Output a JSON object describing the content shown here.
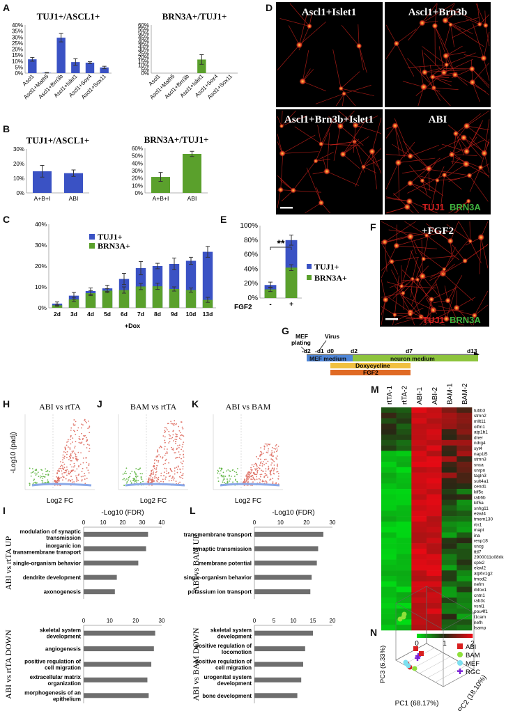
{
  "panel_letters": [
    "A",
    "B",
    "C",
    "D",
    "E",
    "F",
    "G",
    "H",
    "I",
    "J",
    "K",
    "L",
    "M",
    "N"
  ],
  "chart_data": [
    {
      "id": "A1",
      "type": "bar",
      "title": "TUJ1+/ASCL1+",
      "color": "#3a52c4",
      "categories": [
        "Ascl1",
        "Ascl1+Math5",
        "Ascl1+Brn3b",
        "Ascl1+Islet1",
        "Ascl1+Sox4",
        "Ascl1+Sox11"
      ],
      "values": [
        11.5,
        0.3,
        29.5,
        9.2,
        8.7,
        4.7
      ],
      "errors": [
        1.6,
        0.2,
        3.5,
        2.8,
        0.8,
        1.0
      ],
      "ylim": [
        0,
        40
      ],
      "yticks": [
        "0%",
        "5%",
        "10%",
        "15%",
        "20%",
        "25%",
        "30%",
        "35%",
        "40%"
      ]
    },
    {
      "id": "A2",
      "type": "bar",
      "title": "BRN3A+/TUJ1+",
      "color": "#5aa02c",
      "categories": [
        "Ascl1",
        "Ascl1+Math5",
        "Ascl1+Brn3b",
        "Ascl1+Islet1",
        "Ascl1+Sox4",
        "Ascl1+Sox11"
      ],
      "values": [
        0,
        0,
        0,
        17,
        0,
        0
      ],
      "errors": [
        0,
        0,
        0,
        6,
        0,
        0
      ],
      "ylim": [
        0,
        60
      ],
      "yticks": [
        "0%",
        "5%",
        "10%",
        "15%",
        "20%",
        "25%",
        "30%",
        "35%",
        "40%",
        "45%",
        "50%",
        "55%",
        "60%"
      ]
    },
    {
      "id": "B1",
      "type": "bar",
      "title": "TUJ1+/ASCL1+",
      "color": "#3a52c4",
      "categories": [
        "A+B+I",
        "ABI"
      ],
      "values": [
        14.8,
        13.5
      ],
      "errors": [
        4,
        2.2
      ],
      "ylim": [
        0,
        30
      ],
      "yticks": [
        "0%",
        "10%",
        "20%",
        "30%"
      ]
    },
    {
      "id": "B2",
      "type": "bar",
      "title": "BRN3A+/TUJ1+",
      "color": "#5aa02c",
      "categories": [
        "A+B+I",
        "ABI"
      ],
      "values": [
        21.5,
        52.5
      ],
      "errors": [
        6,
        3.5
      ],
      "ylim": [
        0,
        60
      ],
      "yticks": [
        "0%",
        "10%",
        "20%",
        "30%",
        "40%",
        "50%",
        "60%"
      ]
    },
    {
      "id": "C",
      "type": "bar",
      "xlabel": "+Dox",
      "categories": [
        "2d",
        "3d",
        "4d",
        "5d",
        "6d",
        "7d",
        "8d",
        "9d",
        "10d",
        "13d"
      ],
      "series": [
        {
          "name": "TUJ1+",
          "color": "#3a52c4",
          "values": [
            2,
            5.8,
            8,
            9.3,
            13.8,
            19,
            20,
            21,
            22.5,
            26.8
          ],
          "errors": [
            0.8,
            1.6,
            1.5,
            1.5,
            2.7,
            3.2,
            1.3,
            2.8,
            1.7,
            2.6
          ]
        },
        {
          "name": "BRN3A+",
          "color": "#5aa02c",
          "values": [
            1.2,
            4,
            7,
            8.2,
            8.5,
            10.2,
            10.3,
            9,
            8.5,
            3.8
          ],
          "errors": [
            0.5,
            1.0,
            1.2,
            1.0,
            1.5,
            1.5,
            1.5,
            1.0,
            1.0,
            1.2
          ]
        }
      ],
      "ylim": [
        0,
        40
      ],
      "yticks": [
        "0%",
        "10%",
        "20%",
        "30%",
        "40%"
      ]
    },
    {
      "id": "E",
      "type": "bar",
      "xlabel": "FGF2",
      "categories": [
        "-",
        "+"
      ],
      "series": [
        {
          "name": "TUJ1+",
          "color": "#3a52c4",
          "values": [
            18,
            80
          ],
          "errors": [
            4,
            7
          ]
        },
        {
          "name": "BRN3A+",
          "color": "#5aa02c",
          "values": [
            12,
            42
          ],
          "errors": [
            3,
            4
          ]
        }
      ],
      "annotation": "**",
      "ylim": [
        0,
        100
      ],
      "yticks": [
        "0%",
        "20%",
        "40%",
        "60%",
        "80%",
        "100%"
      ]
    },
    {
      "id": "I_up",
      "type": "bar",
      "orientation": "horizontal",
      "xlabel": "-Log10 (FDR)",
      "group": "ABI vs rtTA UP",
      "categories": [
        "modulation of synaptic transmission",
        "inorganic ion transmembrane transport",
        "single-organism behavior",
        "dendrite development",
        "axonogenesis"
      ],
      "values": [
        33,
        32,
        28,
        17,
        16
      ],
      "xlim": [
        0,
        40
      ],
      "xticks": [
        "0",
        "10",
        "20",
        "30",
        "40"
      ]
    },
    {
      "id": "I_down",
      "type": "bar",
      "orientation": "horizontal",
      "group": "ABI vs rtTA DOWN",
      "categories": [
        "skeletal system development",
        "angiogenesis",
        "positive regulation of cell migration",
        "extracellular matrix organization",
        "morphogenesis of an epithelium"
      ],
      "values": [
        27.5,
        27,
        26,
        24.5,
        25
      ],
      "xlim": [
        0,
        30
      ],
      "xticks": [
        "0",
        "10",
        "20",
        "30"
      ]
    },
    {
      "id": "L_up",
      "type": "bar",
      "orientation": "horizontal",
      "xlabel": "-Log10 (FDR)",
      "group": "ABI vs BAM UP",
      "categories": [
        "transmembrane transport",
        "synaptic transmission",
        "membrane potential",
        "single-organism behavior",
        "potassium ion transport"
      ],
      "values": [
        26.5,
        24.5,
        24,
        22,
        21.5
      ],
      "xlim": [
        0,
        30
      ],
      "xticks": [
        "0",
        "10",
        "20",
        "30"
      ]
    },
    {
      "id": "L_down",
      "type": "bar",
      "orientation": "horizontal",
      "group": "ABI vs BAM DOWN",
      "categories": [
        "skeletal system development",
        "positive regulation of locomotion",
        "positive regulation of cell migration",
        "urogenital system development",
        "bone development"
      ],
      "values": [
        15,
        13,
        12.5,
        12,
        11
      ],
      "xlim": [
        0,
        20
      ],
      "xticks": [
        "0",
        "5",
        "10",
        "15",
        "20"
      ]
    },
    {
      "id": "M",
      "type": "heatmap",
      "columns": [
        "rtTA-1",
        "rtTA-2",
        "ABI-1",
        "ABI-2",
        "BAM-1",
        "BAM-2"
      ],
      "rows": [
        "tubb3",
        "stmn2",
        "mllt11",
        "olfm1",
        "atp1b1",
        "dner",
        "ndrg4",
        "syt4",
        "nap1l5",
        "stmn3",
        "snca",
        "snrpn",
        "tagln3",
        "sult4a1",
        "cend1",
        "kif5c",
        "rab6b",
        "kif5a",
        "snhg11",
        "elavl4",
        "tmem130",
        "rtn1",
        "mapt",
        "ina",
        "resp18",
        "sncg",
        "tttl7",
        "2900011o08rik",
        "cplx2",
        "elavl2",
        "atp6v1g2",
        "tmod2",
        "nefm",
        "rbfox1",
        "cntn1",
        "rab3c",
        "vsnl1",
        "pou4f1",
        "l1cam",
        "nefh",
        "lsamp"
      ],
      "scale": [
        "0",
        "1",
        "2"
      ]
    },
    {
      "id": "N",
      "type": "scatter",
      "dims": 3,
      "axes": [
        "PC1 (68.17%)",
        "PC2 (18.10%)",
        "PC3 (6.33%)"
      ],
      "legend": [
        {
          "name": "ABI",
          "color": "#d92020"
        },
        {
          "name": "BAM",
          "color": "#8ee03a"
        },
        {
          "name": "MEF",
          "color": "#7ee0f0"
        },
        {
          "name": "RGC",
          "color": "#7a1fd6"
        }
      ]
    }
  ],
  "d_labels": {
    "p1": "Ascl1+Islet1",
    "p2": "Ascl1+Brn3b",
    "p3": "Ascl1+Brn3b+Islet1",
    "p4": "ABI",
    "tuj1": "TUJ1",
    "brn3a": "BRN3A"
  },
  "f_labels": {
    "title": "+FGF2",
    "tuj1": "TUJ1",
    "brn3a": "BRN3A"
  },
  "g": {
    "mef": "MEF",
    "plating": "plating",
    "virus": "Virus",
    "ticks": [
      "-d2",
      "-d1",
      "d0",
      "d2",
      "d7",
      "d13"
    ],
    "mef_medium": "MEF medium",
    "neuron_medium": "neuron medium",
    "doxy": "Doxycycline",
    "fgf2": "FGF2"
  },
  "volcano": {
    "titles": [
      "ABI vs rtTA",
      "BAM vs rtTA",
      "ABI vs BAM"
    ],
    "ylabel": "-Log10 (padj)",
    "xlabel": "Log2 FC"
  }
}
